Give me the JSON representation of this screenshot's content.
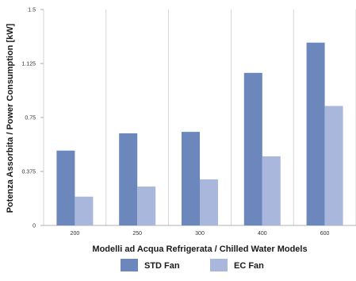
{
  "chart_data": {
    "type": "bar",
    "categories": [
      "200",
      "250",
      "300",
      "400",
      "600"
    ],
    "series": [
      {
        "name": "STD Fan",
        "values": [
          0.52,
          0.64,
          0.65,
          1.06,
          1.27
        ],
        "color": "#6b87bb"
      },
      {
        "name": "EC Fan",
        "values": [
          0.2,
          0.27,
          0.32,
          0.48,
          0.83
        ],
        "color": "#aab7dd"
      }
    ],
    "title": "",
    "xlabel": "Modelli ad Acqua Refrigerata / Chilled Water Models",
    "ylabel": "Potenza Assorbita / Power Consumption [kW]",
    "ylim": [
      0,
      1.5
    ],
    "yticks": [
      {
        "value": 0,
        "label": "0"
      },
      {
        "value": 0.375,
        "label": "0.375"
      },
      {
        "value": 0.75,
        "label": "0.75"
      },
      {
        "value": 1.125,
        "label": "1.125"
      },
      {
        "value": 1.5,
        "label": "1.5"
      }
    ],
    "grid": "vertical-separators",
    "legend_position": "bottom-center"
  }
}
